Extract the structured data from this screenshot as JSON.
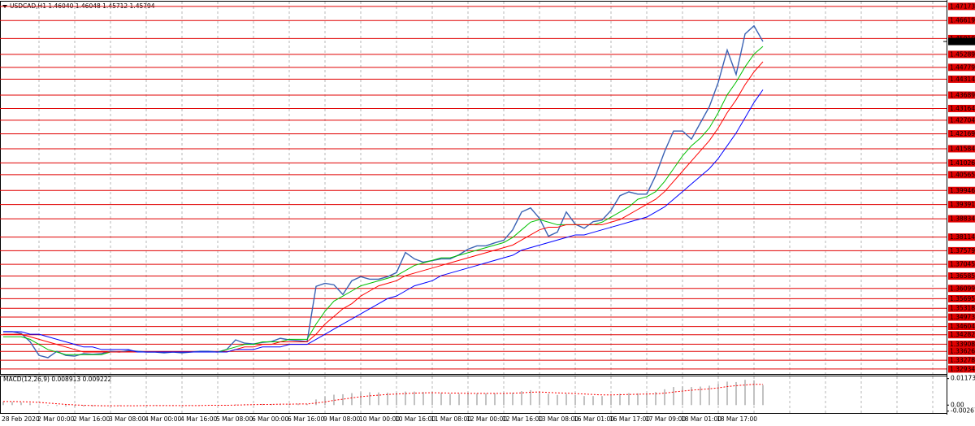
{
  "chart_data": [
    {
      "type": "line",
      "title": "USDCAD,H1  1.46040 1.46048 1.45712 1.45794",
      "categories": [
        "28 Feb 2020",
        null,
        null,
        null,
        "2 Mar 00:00",
        null,
        null,
        null,
        "2 Mar 16:00",
        null,
        null,
        null,
        "3 Mar 08:00",
        null,
        null,
        null,
        "4 Mar 00:00",
        null,
        null,
        null,
        "4 Mar 16:00",
        null,
        null,
        null,
        "5 Mar 08:00",
        null,
        null,
        null,
        "6 Mar 00:00",
        null,
        null,
        null,
        "6 Mar 16:00",
        null,
        null,
        null,
        "9 Mar 08:00",
        null,
        null,
        null,
        "10 Mar 00:00",
        null,
        null,
        null,
        "10 Mar 16:00",
        null,
        null,
        null,
        "11 Mar 08:00",
        null,
        null,
        null,
        "12 Mar 00:00",
        null,
        null,
        null,
        "12 Mar 16:00",
        null,
        null,
        null,
        "13 Mar 08:00",
        null,
        null,
        null,
        "16 Mar 01:00",
        null,
        null,
        null,
        "16 Mar 17:00",
        null,
        null,
        null,
        "17 Mar 09:00",
        null,
        null,
        null,
        "18 Mar 01:00",
        null,
        null,
        null,
        "18 Mar 17:00",
        null,
        null,
        null,
        null,
        null
      ],
      "series": [
        {
          "color": "#3a62b4",
          "width": 1.4,
          "values": [
            1.344,
            1.344,
            1.3433,
            1.3401,
            1.3347,
            1.3338,
            1.3363,
            1.3347,
            1.3344,
            1.3354,
            1.3351,
            1.3354,
            1.3363,
            1.336,
            1.3366,
            1.3363,
            1.336,
            1.336,
            1.3357,
            1.336,
            1.3357,
            1.336,
            1.3363,
            1.3363,
            1.336,
            1.337,
            1.3408,
            1.3395,
            1.3392,
            1.3398,
            1.3401,
            1.3414,
            1.3408,
            1.3405,
            1.3401,
            1.3618,
            1.363,
            1.3624,
            1.3586,
            1.364,
            1.3656,
            1.3646,
            1.3646,
            1.3656,
            1.3672,
            1.3751,
            1.3726,
            1.3713,
            1.3719,
            1.3726,
            1.3726,
            1.3742,
            1.3764,
            1.3777,
            1.3777,
            1.3789,
            1.3799,
            1.384,
            1.391,
            1.3926,
            1.3885,
            1.3815,
            1.3831,
            1.391,
            1.3862,
            1.3846,
            1.3872,
            1.3878,
            1.3916,
            1.3974,
            1.3989,
            1.398,
            1.398,
            1.4053,
            1.4148,
            1.4228,
            1.4228,
            1.4196,
            1.426,
            1.4323,
            1.4419,
            1.4546,
            1.445,
            1.4609,
            1.4641,
            1.45794
          ]
        },
        {
          "color": "#00c000",
          "width": 1,
          "values": [
            1.342,
            1.342,
            1.342,
            1.341,
            1.339,
            1.337,
            1.336,
            1.335,
            1.335,
            1.335,
            1.335,
            1.335,
            1.336,
            1.336,
            1.336,
            1.336,
            1.336,
            1.336,
            1.336,
            1.336,
            1.336,
            1.336,
            1.336,
            1.336,
            1.336,
            1.337,
            1.338,
            1.339,
            1.339,
            1.34,
            1.34,
            1.34,
            1.341,
            1.341,
            1.341,
            1.347,
            1.352,
            1.356,
            1.358,
            1.36,
            1.362,
            1.363,
            1.364,
            1.365,
            1.366,
            1.368,
            1.37,
            1.371,
            1.372,
            1.373,
            1.373,
            1.374,
            1.375,
            1.376,
            1.377,
            1.378,
            1.379,
            1.381,
            1.384,
            1.387,
            1.388,
            1.387,
            1.386,
            1.386,
            1.386,
            1.386,
            1.386,
            1.387,
            1.389,
            1.391,
            1.393,
            1.396,
            1.397,
            1.399,
            1.403,
            1.408,
            1.413,
            1.417,
            1.42,
            1.424,
            1.43,
            1.437,
            1.442,
            1.448,
            1.453,
            1.456
          ]
        },
        {
          "color": "#ff0000",
          "width": 1,
          "values": [
            1.343,
            1.343,
            1.343,
            1.342,
            1.341,
            1.34,
            1.339,
            1.338,
            1.337,
            1.336,
            1.336,
            1.336,
            1.336,
            1.336,
            1.336,
            1.336,
            1.336,
            1.336,
            1.336,
            1.336,
            1.336,
            1.336,
            1.336,
            1.336,
            1.336,
            1.336,
            1.337,
            1.338,
            1.338,
            1.339,
            1.339,
            1.34,
            1.34,
            1.34,
            1.34,
            1.343,
            1.347,
            1.35,
            1.353,
            1.355,
            1.358,
            1.36,
            1.362,
            1.363,
            1.364,
            1.366,
            1.367,
            1.368,
            1.369,
            1.37,
            1.371,
            1.372,
            1.373,
            1.374,
            1.375,
            1.376,
            1.377,
            1.378,
            1.38,
            1.382,
            1.384,
            1.385,
            1.385,
            1.386,
            1.386,
            1.386,
            1.386,
            1.386,
            1.387,
            1.388,
            1.39,
            1.392,
            1.394,
            1.396,
            1.399,
            1.403,
            1.407,
            1.411,
            1.415,
            1.419,
            1.424,
            1.43,
            1.435,
            1.441,
            1.446,
            1.45
          ]
        },
        {
          "color": "#0000ff",
          "width": 1,
          "values": [
            1.344,
            1.344,
            1.344,
            1.343,
            1.343,
            1.342,
            1.341,
            1.34,
            1.339,
            1.338,
            1.338,
            1.337,
            1.337,
            1.337,
            1.337,
            1.336,
            1.336,
            1.336,
            1.336,
            1.336,
            1.336,
            1.336,
            1.336,
            1.336,
            1.336,
            1.336,
            1.337,
            1.337,
            1.337,
            1.338,
            1.338,
            1.338,
            1.339,
            1.339,
            1.339,
            1.341,
            1.343,
            1.345,
            1.347,
            1.349,
            1.351,
            1.353,
            1.355,
            1.357,
            1.358,
            1.36,
            1.362,
            1.363,
            1.364,
            1.366,
            1.367,
            1.368,
            1.369,
            1.37,
            1.371,
            1.372,
            1.373,
            1.374,
            1.376,
            1.377,
            1.378,
            1.379,
            1.38,
            1.381,
            1.382,
            1.382,
            1.383,
            1.384,
            1.385,
            1.386,
            1.387,
            1.388,
            1.389,
            1.391,
            1.393,
            1.396,
            1.399,
            1.402,
            1.405,
            1.408,
            1.412,
            1.417,
            1.422,
            1.428,
            1.434,
            1.439
          ]
        }
      ],
      "last_price": 1.45794,
      "ylim": [
        1.3274,
        1.4736
      ],
      "yticks": [
        1.47173,
        1.46619,
        {
          "value": 1.4591,
          "label": "1.45910"
        },
        1.45289,
        1.44779,
        1.44314,
        1.43689,
        1.43164,
        1.42704,
        1.42169,
        1.41584,
        1.41026,
        1.40565,
        1.39946,
        1.39391,
        1.38834,
        1.38114,
        1.37579,
        1.37045,
        1.36585,
        1.36099,
        1.35695,
        1.35318,
        1.34973,
        1.34604,
        1.34282,
        1.33908,
        1.33626,
        1.33278,
        1.32934
      ],
      "grid": true,
      "grid_color": "#e00000"
    },
    {
      "type": "bar",
      "title": "MACD(12,26,9) 0.008913 0.009222",
      "series": [
        {
          "type": "bar",
          "color": "#b4b4b4",
          "values": [
            0.0015,
            0.0014,
            0.0012,
            0.0008,
            0.0002,
            -0.0003,
            -0.0004,
            -0.0006,
            -0.0007,
            -0.0006,
            -0.0006,
            -0.0005,
            -0.0004,
            -0.0003,
            -0.0002,
            -0.0002,
            -0.0002,
            -0.0002,
            -0.0002,
            -0.0002,
            -0.0002,
            -0.0002,
            -0.0001,
            -0.0001,
            -0.0001,
            0.0,
            0.0003,
            0.0004,
            0.0004,
            0.0005,
            0.0005,
            0.0006,
            0.0006,
            0.0006,
            0.0005,
            0.0025,
            0.0038,
            0.0046,
            0.0048,
            0.0053,
            0.0057,
            0.0057,
            0.0056,
            0.0055,
            0.0055,
            0.006,
            0.006,
            0.0058,
            0.0055,
            0.0053,
            0.005,
            0.005,
            0.0051,
            0.0052,
            0.0052,
            0.0052,
            0.0052,
            0.0055,
            0.0062,
            0.0066,
            0.006,
            0.005,
            0.0045,
            0.005,
            0.0045,
            0.004,
            0.004,
            0.004,
            0.0043,
            0.005,
            0.0053,
            0.0052,
            0.005,
            0.0058,
            0.007,
            0.008,
            0.0083,
            0.008,
            0.0082,
            0.0086,
            0.0094,
            0.0104,
            0.0102,
            0.0112,
            0.011,
            0.0089
          ]
        },
        {
          "type": "line",
          "color": "#ff0000",
          "values": [
            0.0016,
            0.0016,
            0.0015,
            0.0014,
            0.0012,
            0.0009,
            0.0006,
            0.0003,
            0.0001,
            -0.0001,
            -0.0002,
            -0.0003,
            -0.0003,
            -0.0003,
            -0.0003,
            -0.0003,
            -0.0002,
            -0.0002,
            -0.0002,
            -0.0002,
            -0.0002,
            -0.0002,
            -0.0002,
            -0.0001,
            -0.0001,
            -0.0001,
            0.0,
            0.0001,
            0.0002,
            0.0003,
            0.0003,
            0.0004,
            0.0004,
            0.0005,
            0.0005,
            0.0009,
            0.0014,
            0.0021,
            0.0026,
            0.0032,
            0.0037,
            0.0041,
            0.0044,
            0.0047,
            0.0049,
            0.0051,
            0.0053,
            0.0054,
            0.0055,
            0.0054,
            0.0053,
            0.0053,
            0.0052,
            0.0052,
            0.0052,
            0.0052,
            0.0052,
            0.0053,
            0.0054,
            0.0057,
            0.0058,
            0.0056,
            0.0054,
            0.0053,
            0.0051,
            0.0049,
            0.0047,
            0.0045,
            0.0045,
            0.0046,
            0.0047,
            0.0048,
            0.0049,
            0.005,
            0.0053,
            0.0058,
            0.0062,
            0.0066,
            0.0069,
            0.0072,
            0.0076,
            0.0082,
            0.0086,
            0.0089,
            0.0092,
            0.0092
          ]
        }
      ],
      "ylim": [
        -0.0035,
        0.0127
      ],
      "yticks": [
        0.011732,
        {
          "value": 0,
          "label": "0.00"
        },
        -0.002671
      ]
    }
  ]
}
